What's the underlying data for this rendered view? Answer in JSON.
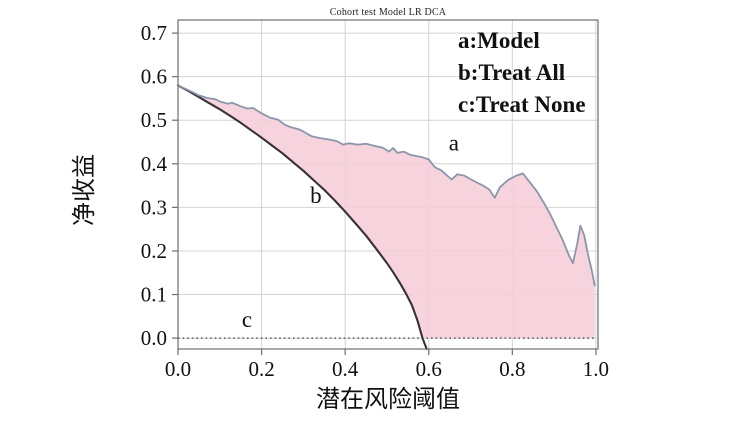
{
  "chart_data": {
    "type": "line",
    "title": "Cohort test Model LR DCA",
    "xlabel": "潜在风险阈值",
    "ylabel": "净收益",
    "xlim": [
      0,
      1.005
    ],
    "ylim": [
      -0.025,
      0.73
    ],
    "grid": true,
    "xticks": [
      0.0,
      0.2,
      0.4,
      0.6,
      0.8,
      1.0
    ],
    "xtick_labels": [
      "0.0",
      "0.2",
      "0.4",
      "0.6",
      "0.8",
      "1.0"
    ],
    "yticks": [
      0.0,
      0.1,
      0.2,
      0.3,
      0.4,
      0.5,
      0.6,
      0.7
    ],
    "ytick_labels": [
      "0.0",
      "0.1",
      "0.2",
      "0.3",
      "0.4",
      "0.5",
      "0.6",
      "0.7"
    ],
    "legend_position": "top-right-inside",
    "legend": [
      {
        "key": "a",
        "name": "Model",
        "display": "a:Model"
      },
      {
        "key": "b",
        "name": "Treat All",
        "display": "b:Treat All"
      },
      {
        "key": "c",
        "name": "Treat None",
        "display": "c:Treat None"
      }
    ],
    "annotations": [
      {
        "text": "a",
        "x": 0.66,
        "y": 0.43
      },
      {
        "text": "b",
        "x": 0.33,
        "y": 0.31
      },
      {
        "text": "c",
        "x": 0.165,
        "y": 0.025
      }
    ],
    "fill_between": {
      "upper": "Model",
      "lower": "Treat All",
      "floor": 0,
      "color": "#f5cdd8",
      "opacity": 0.88
    },
    "series": [
      {
        "name": "Model",
        "annotation": "a",
        "color": "#8a96aa",
        "width": 1.8,
        "style": "solid",
        "points": [
          [
            0.0,
            0.58
          ],
          [
            0.02,
            0.571
          ],
          [
            0.04,
            0.562
          ],
          [
            0.05,
            0.557
          ],
          [
            0.07,
            0.551
          ],
          [
            0.09,
            0.548
          ],
          [
            0.1,
            0.543
          ],
          [
            0.12,
            0.538
          ],
          [
            0.13,
            0.54
          ],
          [
            0.15,
            0.532
          ],
          [
            0.165,
            0.527
          ],
          [
            0.18,
            0.528
          ],
          [
            0.2,
            0.516
          ],
          [
            0.22,
            0.506
          ],
          [
            0.24,
            0.501
          ],
          [
            0.255,
            0.49
          ],
          [
            0.27,
            0.484
          ],
          [
            0.29,
            0.479
          ],
          [
            0.3,
            0.474
          ],
          [
            0.32,
            0.463
          ],
          [
            0.34,
            0.459
          ],
          [
            0.36,
            0.456
          ],
          [
            0.38,
            0.452
          ],
          [
            0.395,
            0.444
          ],
          [
            0.41,
            0.447
          ],
          [
            0.43,
            0.444
          ],
          [
            0.45,
            0.446
          ],
          [
            0.47,
            0.441
          ],
          [
            0.49,
            0.437
          ],
          [
            0.505,
            0.428
          ],
          [
            0.515,
            0.436
          ],
          [
            0.525,
            0.425
          ],
          [
            0.54,
            0.428
          ],
          [
            0.555,
            0.421
          ],
          [
            0.57,
            0.418
          ],
          [
            0.585,
            0.415
          ],
          [
            0.6,
            0.41
          ],
          [
            0.615,
            0.392
          ],
          [
            0.63,
            0.385
          ],
          [
            0.645,
            0.372
          ],
          [
            0.655,
            0.364
          ],
          [
            0.668,
            0.376
          ],
          [
            0.685,
            0.373
          ],
          [
            0.7,
            0.365
          ],
          [
            0.715,
            0.357
          ],
          [
            0.73,
            0.35
          ],
          [
            0.745,
            0.341
          ],
          [
            0.758,
            0.322
          ],
          [
            0.77,
            0.346
          ],
          [
            0.79,
            0.363
          ],
          [
            0.81,
            0.373
          ],
          [
            0.825,
            0.378
          ],
          [
            0.84,
            0.36
          ],
          [
            0.86,
            0.335
          ],
          [
            0.875,
            0.311
          ],
          [
            0.89,
            0.286
          ],
          [
            0.905,
            0.256
          ],
          [
            0.92,
            0.226
          ],
          [
            0.935,
            0.191
          ],
          [
            0.945,
            0.172
          ],
          [
            0.955,
            0.215
          ],
          [
            0.963,
            0.258
          ],
          [
            0.972,
            0.236
          ],
          [
            0.98,
            0.196
          ],
          [
            0.99,
            0.156
          ],
          [
            0.997,
            0.121
          ]
        ]
      },
      {
        "name": "Treat All",
        "annotation": "b",
        "color": "#3a3136",
        "width": 2.1,
        "style": "solid",
        "points": [
          [
            0.0,
            0.58
          ],
          [
            0.025,
            0.567
          ],
          [
            0.05,
            0.553
          ],
          [
            0.075,
            0.539
          ],
          [
            0.1,
            0.525
          ],
          [
            0.125,
            0.51
          ],
          [
            0.15,
            0.494
          ],
          [
            0.175,
            0.477
          ],
          [
            0.2,
            0.46
          ],
          [
            0.225,
            0.442
          ],
          [
            0.25,
            0.424
          ],
          [
            0.275,
            0.404
          ],
          [
            0.3,
            0.384
          ],
          [
            0.325,
            0.362
          ],
          [
            0.35,
            0.34
          ],
          [
            0.375,
            0.316
          ],
          [
            0.4,
            0.29
          ],
          [
            0.425,
            0.263
          ],
          [
            0.45,
            0.235
          ],
          [
            0.475,
            0.204
          ],
          [
            0.5,
            0.172
          ],
          [
            0.515,
            0.151
          ],
          [
            0.53,
            0.128
          ],
          [
            0.545,
            0.103
          ],
          [
            0.56,
            0.075
          ],
          [
            0.573,
            0.04
          ],
          [
            0.585,
            0.0
          ],
          [
            0.595,
            -0.025
          ]
        ]
      },
      {
        "name": "Treat None",
        "annotation": "c",
        "color": "#3c3c3c",
        "width": 1.3,
        "style": "dotted",
        "points": [
          [
            0.0,
            0.0
          ],
          [
            1.0,
            0.0
          ]
        ]
      }
    ],
    "colors": {
      "grid": "#d4d4d4",
      "frame": "#6f6f6f",
      "fill": "#f5cdd8",
      "model_line": "#8a96aa",
      "treat_all_line": "#3a3136",
      "treat_none_line": "#3c3c3c"
    }
  }
}
